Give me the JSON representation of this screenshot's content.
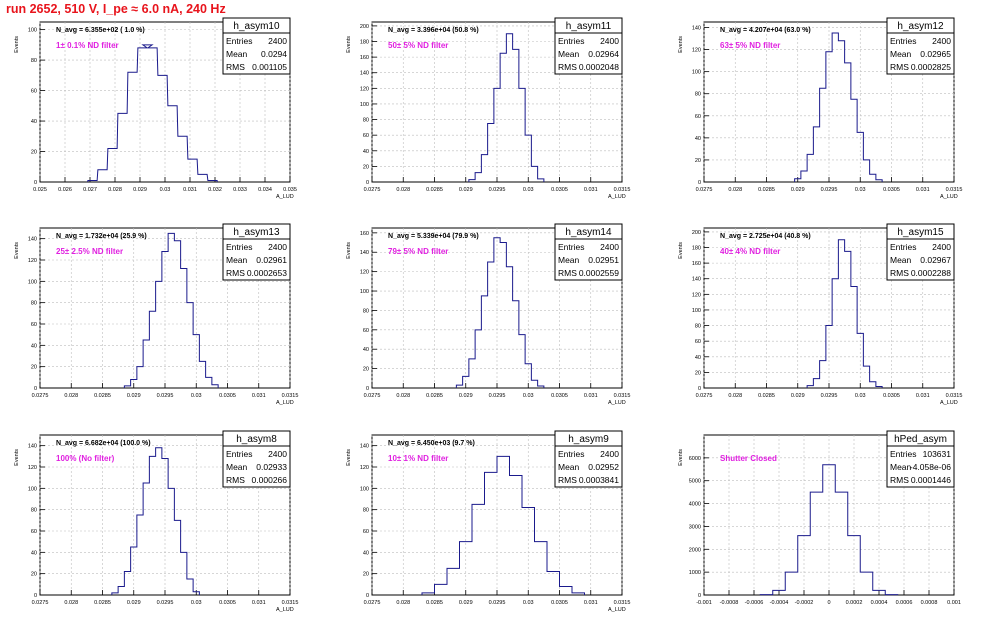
{
  "page_title": "run 2652,   510 V, I_pe ≈ 6.0 nA, 240 Hz",
  "stats_labels": {
    "entries": "Entries",
    "mean": "Mean",
    "rms": "RMS"
  },
  "colors": {
    "histogram": "#1a1a8c",
    "annotation": "#e020e0",
    "title": "#e8141c",
    "grid": "#bdbdbd"
  },
  "chart_data": [
    {
      "type": "histogram",
      "name": "h_asym10",
      "navg": "N_avg = 6.355e+02 ( 1.0 %)",
      "filter": "1± 0.1% ND filter",
      "ylabel": "Events",
      "xlabel": "A_LUD",
      "xlim": [
        0.025,
        0.035
      ],
      "ylim": [
        0,
        105
      ],
      "xticks": [
        "0.025",
        "0.026",
        "0.027",
        "0.028",
        "0.029",
        "0.03",
        "0.031",
        "0.032",
        "0.033",
        "0.034",
        "0.035"
      ],
      "yticks": [
        0,
        20,
        40,
        60,
        80,
        100
      ],
      "entries": "2400",
      "mean": "0.0294",
      "rms": "0.001105",
      "x": [
        0.0271,
        0.0275,
        0.0279,
        0.0283,
        0.0287,
        0.0291,
        0.0293,
        0.0295,
        0.0299,
        0.0303,
        0.0307,
        0.0311,
        0.0315,
        0.0319
      ],
      "y": [
        1,
        8,
        22,
        45,
        72,
        88,
        90,
        88,
        70,
        50,
        30,
        15,
        5,
        1
      ]
    },
    {
      "type": "histogram",
      "name": "h_asym11",
      "navg": "N_avg = 3.396e+04 (50.8 %)",
      "filter": "50± 5% ND filter",
      "ylabel": "Events",
      "xlabel": "A_LUD",
      "xlim": [
        0.0275,
        0.0315
      ],
      "ylim": [
        0,
        205
      ],
      "xticks": [
        "0.0275",
        "0.028",
        "0.0285",
        "0.029",
        "0.0295",
        "0.03",
        "0.0305",
        "0.031",
        "0.0315"
      ],
      "yticks": [
        0,
        20,
        40,
        60,
        80,
        100,
        120,
        140,
        160,
        180,
        200
      ],
      "entries": "2400",
      "mean": "0.02964",
      "rms": "0.0002048",
      "x": [
        0.0291,
        0.0292,
        0.0293,
        0.0294,
        0.0295,
        0.0296,
        0.0297,
        0.0298,
        0.0299,
        0.03,
        0.0301,
        0.0302
      ],
      "y": [
        3,
        12,
        35,
        75,
        120,
        165,
        190,
        170,
        120,
        60,
        20,
        4
      ]
    },
    {
      "type": "histogram",
      "name": "h_asym12",
      "navg": "N_avg = 4.207e+04 (63.0 %)",
      "filter": "63± 5% ND filter",
      "ylabel": "Events",
      "xlabel": "A_LUD",
      "xlim": [
        0.0275,
        0.0315
      ],
      "ylim": [
        0,
        145
      ],
      "xticks": [
        "0.0275",
        "0.028",
        "0.0285",
        "0.029",
        "0.0295",
        "0.03",
        "0.0305",
        "0.031",
        "0.0315"
      ],
      "yticks": [
        0,
        20,
        40,
        60,
        80,
        100,
        120,
        140
      ],
      "entries": "2400",
      "mean": "0.02965",
      "rms": "0.0002825",
      "x": [
        0.029,
        0.0291,
        0.0292,
        0.0293,
        0.0294,
        0.0295,
        0.0296,
        0.0297,
        0.0298,
        0.0299,
        0.03,
        0.0301,
        0.0302,
        0.0303
      ],
      "y": [
        3,
        10,
        25,
        50,
        85,
        118,
        135,
        128,
        108,
        75,
        45,
        20,
        7,
        2
      ]
    },
    {
      "type": "histogram",
      "name": "h_asym13",
      "navg": "N_avg = 1.732e+04 (25.9 %)",
      "filter": "25± 2.5% ND filter",
      "ylabel": "Events",
      "xlabel": "A_LUD",
      "xlim": [
        0.0275,
        0.0315
      ],
      "ylim": [
        0,
        150
      ],
      "xticks": [
        "0.0275",
        "0.028",
        "0.0285",
        "0.029",
        "0.0295",
        "0.03",
        "0.0305",
        "0.031",
        "0.0315"
      ],
      "yticks": [
        0,
        20,
        40,
        60,
        80,
        100,
        120,
        140
      ],
      "entries": "2400",
      "mean": "0.02961",
      "rms": "0.0002653",
      "x": [
        0.0289,
        0.029,
        0.0291,
        0.0292,
        0.0293,
        0.0294,
        0.0295,
        0.0296,
        0.0297,
        0.0298,
        0.0299,
        0.03,
        0.0301,
        0.0302,
        0.0303
      ],
      "y": [
        2,
        8,
        20,
        45,
        72,
        100,
        128,
        145,
        138,
        112,
        80,
        50,
        25,
        10,
        3
      ]
    },
    {
      "type": "histogram",
      "name": "h_asym14",
      "navg": "N_avg = 5.339e+04 (79.9 %)",
      "filter": "79± 5% ND filter",
      "ylabel": "Events",
      "xlabel": "A_LUD",
      "xlim": [
        0.0275,
        0.0315
      ],
      "ylim": [
        0,
        165
      ],
      "xticks": [
        "0.0275",
        "0.028",
        "0.0285",
        "0.029",
        "0.0295",
        "0.03",
        "0.0305",
        "0.031",
        "0.0315"
      ],
      "yticks": [
        0,
        20,
        40,
        60,
        80,
        100,
        120,
        140,
        160
      ],
      "entries": "2400",
      "mean": "0.02951",
      "rms": "0.0002559",
      "x": [
        0.0289,
        0.029,
        0.0291,
        0.0292,
        0.0293,
        0.0294,
        0.0295,
        0.0296,
        0.0297,
        0.0298,
        0.0299,
        0.03,
        0.0301,
        0.0302
      ],
      "y": [
        3,
        12,
        30,
        60,
        95,
        130,
        155,
        150,
        125,
        90,
        55,
        25,
        8,
        2
      ]
    },
    {
      "type": "histogram",
      "name": "h_asym15",
      "navg": "N_avg = 2.725e+04 (40.8 %)",
      "filter": "40± 4% ND filter",
      "ylabel": "Events",
      "xlabel": "A_LUD",
      "xlim": [
        0.0275,
        0.0315
      ],
      "ylim": [
        0,
        205
      ],
      "xticks": [
        "0.0275",
        "0.028",
        "0.0285",
        "0.029",
        "0.0295",
        "0.03",
        "0.0305",
        "0.031",
        "0.0315"
      ],
      "yticks": [
        0,
        20,
        40,
        60,
        80,
        100,
        120,
        140,
        160,
        180,
        200
      ],
      "entries": "2400",
      "mean": "0.02967",
      "rms": "0.0002288",
      "x": [
        0.0292,
        0.0293,
        0.0294,
        0.0295,
        0.0296,
        0.0297,
        0.0298,
        0.0299,
        0.03,
        0.0301,
        0.0302,
        0.0303
      ],
      "y": [
        3,
        12,
        35,
        80,
        140,
        190,
        175,
        130,
        70,
        28,
        8,
        2
      ]
    },
    {
      "type": "histogram",
      "name": "h_asym8",
      "navg": "N_avg = 6.682e+04 (100.0 %)",
      "filter": "100% (No filter)",
      "ylabel": "Events",
      "xlabel": "A_LUD",
      "xlim": [
        0.0275,
        0.0315
      ],
      "ylim": [
        0,
        150
      ],
      "xticks": [
        "0.0275",
        "0.028",
        "0.0285",
        "0.029",
        "0.0295",
        "0.03",
        "0.0305",
        "0.031",
        "0.0315"
      ],
      "yticks": [
        0,
        20,
        40,
        60,
        80,
        100,
        120,
        140
      ],
      "entries": "2400",
      "mean": "0.02933",
      "rms": "0.000266",
      "x": [
        0.0287,
        0.0288,
        0.0289,
        0.029,
        0.0291,
        0.0292,
        0.0293,
        0.0294,
        0.0295,
        0.0296,
        0.0297,
        0.0298,
        0.0299,
        0.03
      ],
      "y": [
        2,
        8,
        22,
        45,
        75,
        105,
        130,
        138,
        128,
        100,
        70,
        40,
        15,
        3
      ]
    },
    {
      "type": "histogram",
      "name": "h_asym9",
      "navg": "N_avg = 6.450e+03 (9.7 %)",
      "filter": "10± 1% ND filter",
      "ylabel": "Events",
      "xlabel": "A_LUD",
      "xlim": [
        0.0275,
        0.0315
      ],
      "ylim": [
        0,
        150
      ],
      "xticks": [
        "0.0275",
        "0.028",
        "0.0285",
        "0.029",
        "0.0295",
        "0.03",
        "0.0305",
        "0.031",
        "0.0315"
      ],
      "yticks": [
        0,
        20,
        40,
        60,
        80,
        100,
        120,
        140
      ],
      "entries": "2400",
      "mean": "0.02952",
      "rms": "0.0003841",
      "x": [
        0.0284,
        0.0286,
        0.0288,
        0.029,
        0.0292,
        0.0294,
        0.0296,
        0.0298,
        0.03,
        0.0302,
        0.0304,
        0.0306,
        0.0308
      ],
      "y": [
        2,
        10,
        25,
        50,
        85,
        115,
        130,
        112,
        82,
        50,
        22,
        8,
        2
      ]
    },
    {
      "type": "histogram",
      "name": "hPed_asym",
      "navg": "",
      "filter": "Shutter Closed",
      "ylabel": "Events",
      "xlabel": "",
      "xlim": [
        -0.001,
        0.001
      ],
      "ylim": [
        0,
        7000
      ],
      "xticks": [
        "-0.001",
        "-0.0008",
        "-0.0006",
        "-0.0004",
        "-0.0002",
        "0",
        "0.0002",
        "0.0004",
        "0.0006",
        "0.0008",
        "0.001"
      ],
      "yticks": [
        0,
        1000,
        2000,
        3000,
        4000,
        5000,
        6000
      ],
      "entries": "103631",
      "mean": "-4.058e-06",
      "rms": "0.0001446",
      "x": [
        -0.0005,
        -0.0004,
        -0.0003,
        -0.0002,
        -0.0001,
        0,
        0.0001,
        0.0002,
        0.0003,
        0.0004,
        0.0005
      ],
      "y": [
        15,
        200,
        1000,
        2600,
        4500,
        5700,
        4500,
        2600,
        1000,
        200,
        15
      ]
    }
  ]
}
